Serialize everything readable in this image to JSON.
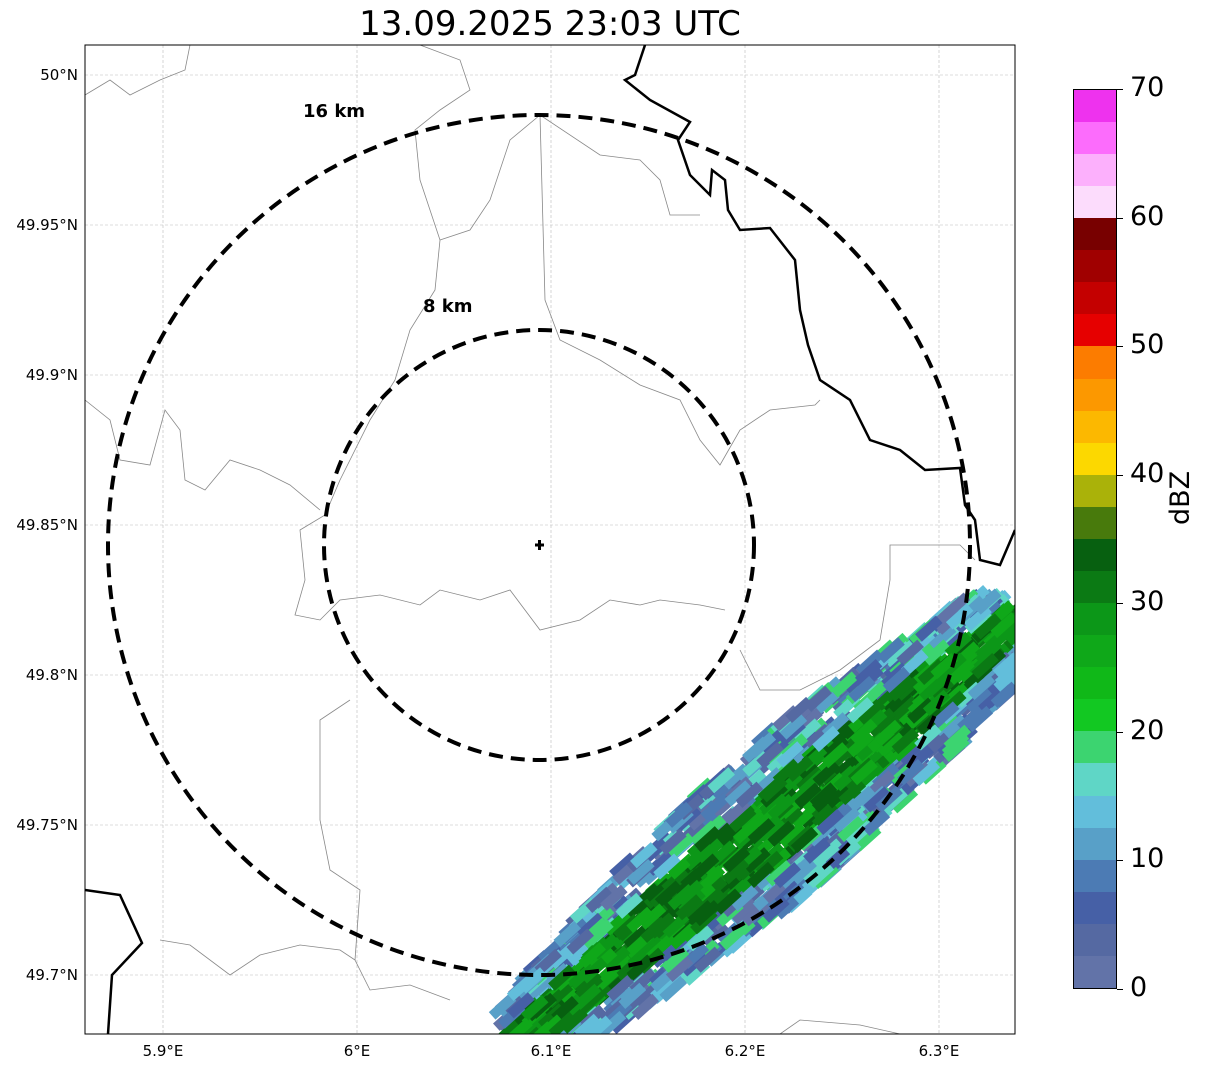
{
  "title": "13.09.2025 23:03 UTC",
  "axes": {
    "lat_ticks": [
      {
        "value": 50.0,
        "label": "50°N"
      },
      {
        "value": 49.95,
        "label": "49.95°N"
      },
      {
        "value": 49.9,
        "label": "49.9°N"
      },
      {
        "value": 49.85,
        "label": "49.85°N"
      },
      {
        "value": 49.8,
        "label": "49.8°N"
      },
      {
        "value": 49.75,
        "label": "49.75°N"
      },
      {
        "value": 49.7,
        "label": "49.7°N"
      }
    ],
    "lon_ticks": [
      {
        "value": 5.9,
        "label": "5.9°E"
      },
      {
        "value": 6.0,
        "label": "6°E"
      },
      {
        "value": 6.1,
        "label": "6.1°E"
      },
      {
        "value": 6.2,
        "label": "6.2°E"
      },
      {
        "value": 6.3,
        "label": "6.3°E"
      }
    ],
    "lon_range": [
      5.86,
      6.34
    ],
    "lat_range": [
      49.68,
      50.01
    ]
  },
  "radar_site": {
    "lon": 6.095,
    "lat": 49.844
  },
  "range_rings": [
    {
      "label": "8 km",
      "km": 8
    },
    {
      "label": "16 km",
      "km": 16
    }
  ],
  "colorbar": {
    "label": "dBZ",
    "ticks": [
      "0",
      "10",
      "20",
      "30",
      "40",
      "50",
      "60",
      "70"
    ],
    "colors": [
      "#6273a8",
      "#5569a2",
      "#4660a6",
      "#4c7bb4",
      "#58a0c8",
      "#62bedb",
      "#5fd6c6",
      "#3cd470",
      "#12c822",
      "#10b818",
      "#0fa819",
      "#0c9718",
      "#0b7a14",
      "#076010",
      "#487a0c",
      "#aab209",
      "#fcd800",
      "#fcb800",
      "#fc9800",
      "#fc7c00",
      "#e60000",
      "#c40000",
      "#a00000",
      "#780000",
      "#fcdcfc",
      "#fcb0fc",
      "#fc6cfc",
      "#ee32ee"
    ]
  }
}
